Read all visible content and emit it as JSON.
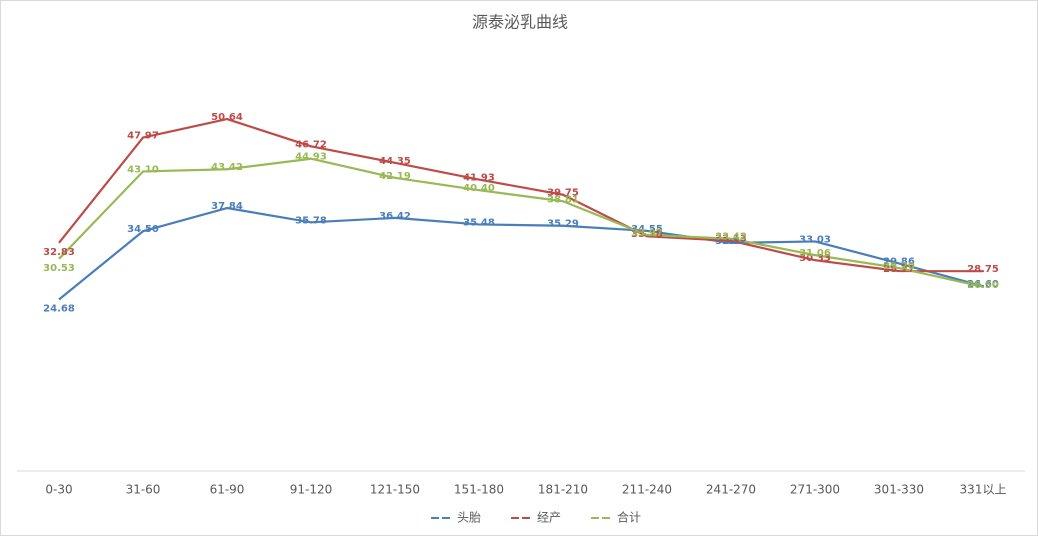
{
  "chart_data": {
    "type": "line",
    "title": "源泰泌乳曲线",
    "categories": [
      "0-30",
      "31-60",
      "61-90",
      "91-120",
      "121-150",
      "151-180",
      "181-210",
      "211-240",
      "241-270",
      "271-300",
      "301-330",
      "331以上"
    ],
    "series": [
      {
        "name": "头胎",
        "color": "#4a7ebb",
        "values": [
          24.68,
          34.5,
          37.84,
          35.78,
          36.42,
          35.48,
          35.29,
          34.55,
          32.82,
          33.03,
          29.86,
          26.6
        ],
        "value_labels": [
          "24.68",
          "34.50",
          "37.84",
          "35.78",
          "36.42",
          "35.48",
          "35.29",
          "34.55",
          "32.82",
          "33.03",
          "29.86",
          "26.60"
        ]
      },
      {
        "name": "经产",
        "color": "#be4b48",
        "values": [
          32.83,
          47.97,
          50.64,
          46.72,
          44.35,
          41.93,
          39.75,
          33.78,
          33.13,
          30.33,
          28.77,
          28.75
        ],
        "value_labels": [
          "32.83",
          "47.97",
          "50.64",
          "46.72",
          "44.35",
          "41.93",
          "39.75",
          "33.78",
          "33.13",
          "30.33",
          "28.77",
          "28.75"
        ]
      },
      {
        "name": "合计",
        "color": "#98b954",
        "values": [
          30.53,
          43.1,
          43.42,
          44.93,
          42.19,
          40.4,
          38.81,
          33.97,
          33.42,
          31.06,
          29.2,
          26.5
        ],
        "value_labels": [
          "30.53",
          "43.10",
          "43.42",
          "44.93",
          "42.19",
          "40.40",
          "38.81",
          "33.97",
          "33.42",
          "31.06",
          "29.20",
          "26.50"
        ]
      }
    ],
    "ylim": [
      0,
      60
    ],
    "legend": "bottom"
  }
}
